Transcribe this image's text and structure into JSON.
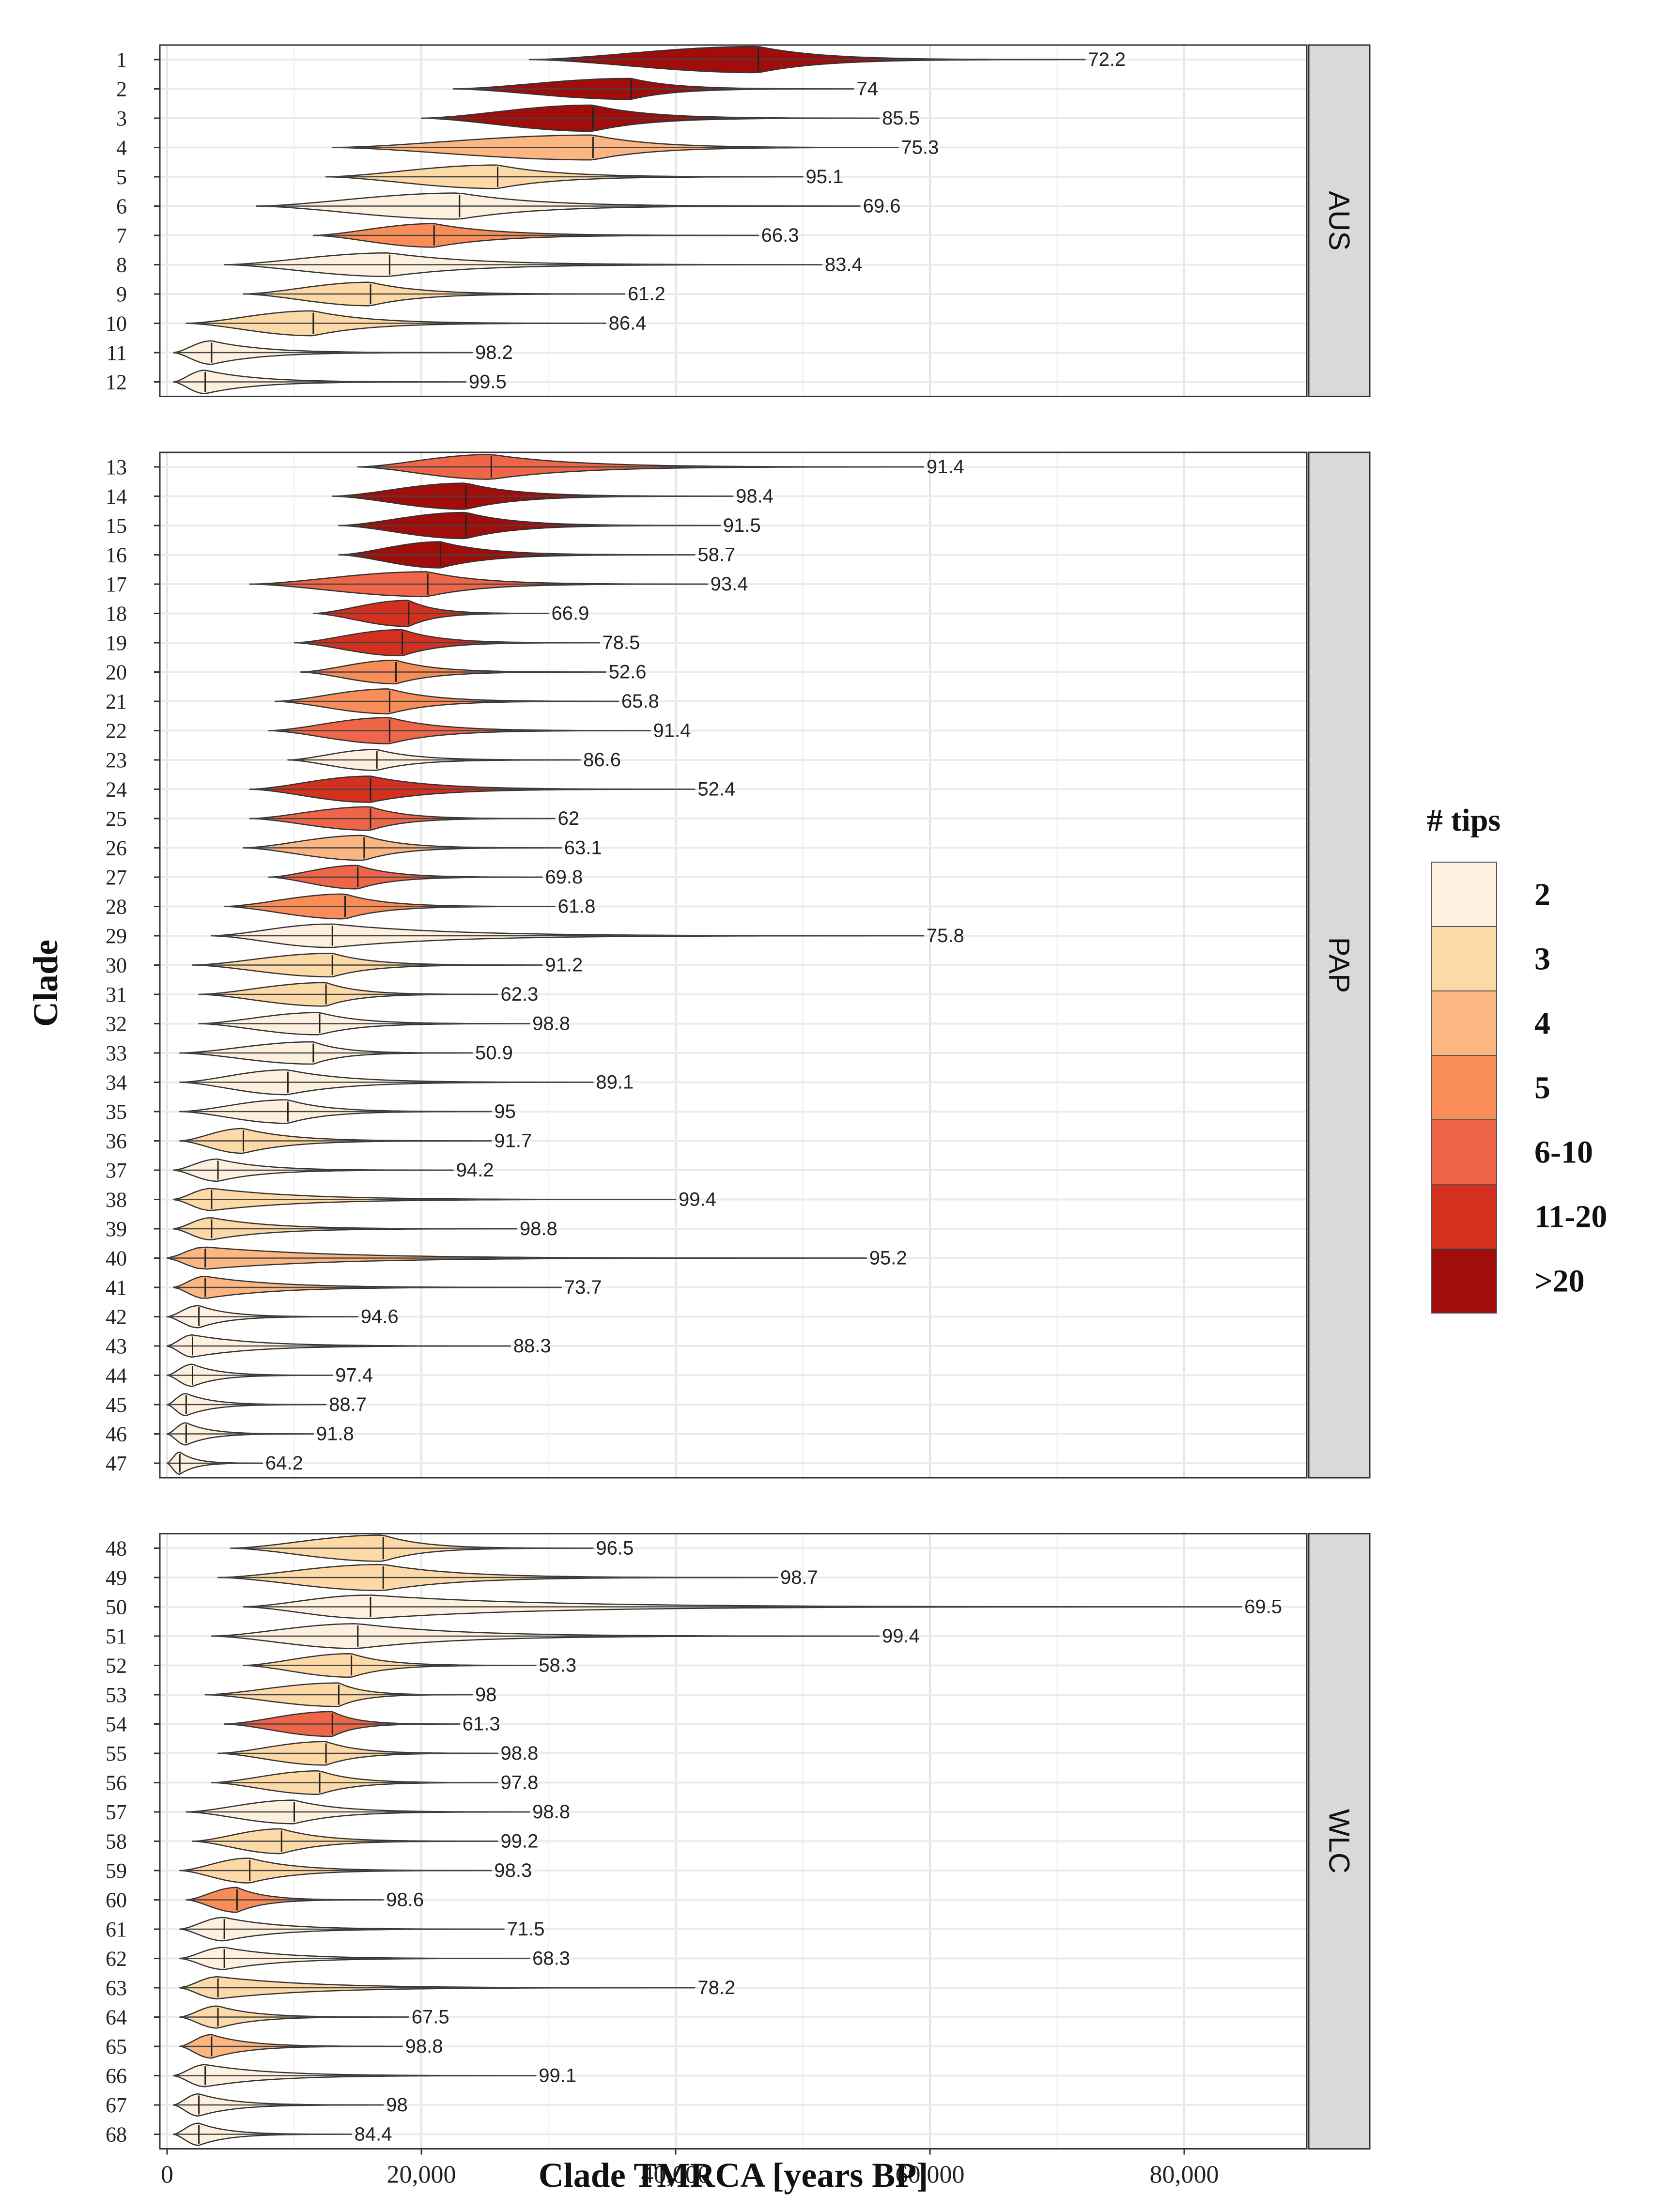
{
  "chart_data": {
    "type": "violin",
    "xlabel": "Clade TMRCA [years BP]",
    "ylabel": "Clade",
    "xlim": [
      0,
      88000
    ],
    "xticks": [
      0,
      20000,
      40000,
      60000,
      80000
    ],
    "xtick_labels": [
      "0",
      "20,000",
      "40,000",
      "60,000",
      "80,000"
    ],
    "legend": {
      "title": "# tips",
      "placement": "right",
      "entries": [
        {
          "label": "2",
          "color": "#FDF0DE"
        },
        {
          "label": "3",
          "color": "#FCD9A6"
        },
        {
          "label": "4",
          "color": "#FBB682"
        },
        {
          "label": "5",
          "color": "#F98D58"
        },
        {
          "label": "6-10",
          "color": "#EE6548"
        },
        {
          "label": "11-20",
          "color": "#D4301F"
        },
        {
          "label": ">20",
          "color": "#A10D0A"
        }
      ]
    },
    "facets": [
      {
        "name": "AUS",
        "clades": [
          {
            "clade": "1",
            "min": 28500,
            "max": 72200,
            "median": 46500,
            "width": 1.0,
            "tips": ">20",
            "label": "72.2"
          },
          {
            "clade": "2",
            "min": 22500,
            "max": 54000,
            "median": 36500,
            "width": 0.8,
            "tips": ">20",
            "label": "74"
          },
          {
            "clade": "3",
            "min": 20000,
            "max": 56000,
            "median": 33500,
            "width": 1.0,
            "tips": ">20",
            "label": "85.5"
          },
          {
            "clade": "4",
            "min": 13000,
            "max": 57500,
            "median": 33500,
            "width": 0.95,
            "tips": "4",
            "label": "75.3"
          },
          {
            "clade": "5",
            "min": 12500,
            "max": 50000,
            "median": 26000,
            "width": 0.9,
            "tips": "3",
            "label": "95.1"
          },
          {
            "clade": "6",
            "min": 7000,
            "max": 54500,
            "median": 23000,
            "width": 1.0,
            "tips": "2",
            "label": "69.6"
          },
          {
            "clade": "7",
            "min": 11500,
            "max": 46500,
            "median": 21000,
            "width": 0.9,
            "tips": "5",
            "label": "66.3"
          },
          {
            "clade": "8",
            "min": 4500,
            "max": 51500,
            "median": 17500,
            "width": 0.9,
            "tips": "2",
            "label": "83.4"
          },
          {
            "clade": "9",
            "min": 6000,
            "max": 36000,
            "median": 16000,
            "width": 0.9,
            "tips": "3",
            "label": "61.2"
          },
          {
            "clade": "10",
            "min": 1500,
            "max": 34500,
            "median": 11500,
            "width": 0.95,
            "tips": "3",
            "label": "86.4"
          },
          {
            "clade": "11",
            "min": 500,
            "max": 24000,
            "median": 3500,
            "width": 0.9,
            "tips": "2",
            "label": "98.2"
          },
          {
            "clade": "12",
            "min": 500,
            "max": 23500,
            "median": 3000,
            "width": 0.9,
            "tips": "2",
            "label": "99.5"
          }
        ]
      },
      {
        "name": "PAP",
        "clades": [
          {
            "clade": "13",
            "min": 15000,
            "max": 59500,
            "median": 25500,
            "width": 0.95,
            "tips": "6-10",
            "label": "91.4"
          },
          {
            "clade": "14",
            "min": 13000,
            "max": 44500,
            "median": 23500,
            "width": 1.0,
            "tips": ">20",
            "label": "98.4"
          },
          {
            "clade": "15",
            "min": 13500,
            "max": 43500,
            "median": 23500,
            "width": 1.0,
            "tips": ">20",
            "label": "91.5"
          },
          {
            "clade": "16",
            "min": 13500,
            "max": 41500,
            "median": 21500,
            "width": 1.0,
            "tips": ">20",
            "label": "58.7"
          },
          {
            "clade": "17",
            "min": 6500,
            "max": 42500,
            "median": 20500,
            "width": 0.95,
            "tips": "6-10",
            "label": "93.4"
          },
          {
            "clade": "18",
            "min": 11500,
            "max": 30000,
            "median": 19000,
            "width": 1.0,
            "tips": "11-20",
            "label": "66.9"
          },
          {
            "clade": "19",
            "min": 10000,
            "max": 34000,
            "median": 18500,
            "width": 1.0,
            "tips": "11-20",
            "label": "78.5"
          },
          {
            "clade": "20",
            "min": 10500,
            "max": 34500,
            "median": 18000,
            "width": 0.9,
            "tips": "5",
            "label": "52.6"
          },
          {
            "clade": "21",
            "min": 8500,
            "max": 35500,
            "median": 17500,
            "width": 0.95,
            "tips": "5",
            "label": "65.8"
          },
          {
            "clade": "22",
            "min": 8000,
            "max": 38000,
            "median": 17500,
            "width": 1.0,
            "tips": "6-10",
            "label": "91.4"
          },
          {
            "clade": "23",
            "min": 9500,
            "max": 32500,
            "median": 16500,
            "width": 0.8,
            "tips": "2",
            "label": "86.6"
          },
          {
            "clade": "24",
            "min": 6500,
            "max": 41500,
            "median": 16000,
            "width": 1.0,
            "tips": "11-20",
            "label": "52.4"
          },
          {
            "clade": "25",
            "min": 6500,
            "max": 30500,
            "median": 16000,
            "width": 0.9,
            "tips": "6-10",
            "label": "62"
          },
          {
            "clade": "26",
            "min": 6000,
            "max": 31000,
            "median": 15500,
            "width": 0.95,
            "tips": "4",
            "label": "63.1"
          },
          {
            "clade": "27",
            "min": 8000,
            "max": 29500,
            "median": 15000,
            "width": 0.9,
            "tips": "6-10",
            "label": "69.8"
          },
          {
            "clade": "28",
            "min": 4500,
            "max": 30500,
            "median": 14000,
            "width": 0.95,
            "tips": "5",
            "label": "61.8"
          },
          {
            "clade": "29",
            "min": 3500,
            "max": 59500,
            "median": 13000,
            "width": 0.9,
            "tips": "2",
            "label": "75.8"
          },
          {
            "clade": "30",
            "min": 2000,
            "max": 29500,
            "median": 13000,
            "width": 0.9,
            "tips": "3",
            "label": "91.2"
          },
          {
            "clade": "31",
            "min": 2500,
            "max": 26000,
            "median": 12500,
            "width": 0.9,
            "tips": "3",
            "label": "62.3"
          },
          {
            "clade": "32",
            "min": 2500,
            "max": 28500,
            "median": 12000,
            "width": 0.85,
            "tips": "2",
            "label": "98.8"
          },
          {
            "clade": "33",
            "min": 1000,
            "max": 24000,
            "median": 11500,
            "width": 0.85,
            "tips": "2",
            "label": "50.9"
          },
          {
            "clade": "34",
            "min": 1000,
            "max": 33500,
            "median": 9500,
            "width": 0.95,
            "tips": "2",
            "label": "89.1"
          },
          {
            "clade": "35",
            "min": 1000,
            "max": 25500,
            "median": 9500,
            "width": 0.9,
            "tips": "2",
            "label": "95"
          },
          {
            "clade": "36",
            "min": 1000,
            "max": 25500,
            "median": 6000,
            "width": 0.95,
            "tips": "3",
            "label": "91.7"
          },
          {
            "clade": "37",
            "min": 500,
            "max": 22500,
            "median": 4000,
            "width": 0.85,
            "tips": "2",
            "label": "94.2"
          },
          {
            "clade": "38",
            "min": 500,
            "max": 40000,
            "median": 3500,
            "width": 0.85,
            "tips": "3",
            "label": "99.4"
          },
          {
            "clade": "39",
            "min": 500,
            "max": 27500,
            "median": 3500,
            "width": 0.85,
            "tips": "3",
            "label": "98.8"
          },
          {
            "clade": "40",
            "min": 0,
            "max": 55000,
            "median": 3000,
            "width": 0.85,
            "tips": "4",
            "label": "95.2"
          },
          {
            "clade": "41",
            "min": 500,
            "max": 31000,
            "median": 3000,
            "width": 0.85,
            "tips": "4",
            "label": "73.7"
          },
          {
            "clade": "42",
            "min": 0,
            "max": 15000,
            "median": 2500,
            "width": 0.85,
            "tips": "2",
            "label": "94.6"
          },
          {
            "clade": "43",
            "min": 0,
            "max": 27000,
            "median": 2000,
            "width": 0.85,
            "tips": "2",
            "label": "88.3"
          },
          {
            "clade": "44",
            "min": 0,
            "max": 13000,
            "median": 2000,
            "width": 0.85,
            "tips": "2",
            "label": "97.4"
          },
          {
            "clade": "45",
            "min": 0,
            "max": 12500,
            "median": 1500,
            "width": 0.85,
            "tips": "2",
            "label": "88.7"
          },
          {
            "clade": "46",
            "min": 0,
            "max": 11500,
            "median": 1500,
            "width": 0.85,
            "tips": "2",
            "label": "91.8"
          },
          {
            "clade": "47",
            "min": 0,
            "max": 7500,
            "median": 1000,
            "width": 0.85,
            "tips": "2",
            "label": "64.2"
          }
        ]
      },
      {
        "name": "WLC",
        "clades": [
          {
            "clade": "48",
            "min": 5000,
            "max": 33500,
            "median": 17000,
            "width": 1.0,
            "tips": "3",
            "label": "96.5"
          },
          {
            "clade": "49",
            "min": 4000,
            "max": 48000,
            "median": 17000,
            "width": 1.0,
            "tips": "3",
            "label": "98.7"
          },
          {
            "clade": "50",
            "min": 6000,
            "max": 84500,
            "median": 16000,
            "width": 0.9,
            "tips": "2",
            "label": "69.5"
          },
          {
            "clade": "51",
            "min": 3500,
            "max": 56000,
            "median": 15000,
            "width": 0.95,
            "tips": "2",
            "label": "99.4"
          },
          {
            "clade": "52",
            "min": 6000,
            "max": 29000,
            "median": 14500,
            "width": 0.9,
            "tips": "3",
            "label": "58.3"
          },
          {
            "clade": "53",
            "min": 3000,
            "max": 24000,
            "median": 13500,
            "width": 0.9,
            "tips": "3",
            "label": "98"
          },
          {
            "clade": "54",
            "min": 4500,
            "max": 23000,
            "median": 13000,
            "width": 0.95,
            "tips": "6-10",
            "label": "61.3"
          },
          {
            "clade": "55",
            "min": 4000,
            "max": 26000,
            "median": 12500,
            "width": 0.9,
            "tips": "3",
            "label": "98.8"
          },
          {
            "clade": "56",
            "min": 3500,
            "max": 26000,
            "median": 12000,
            "width": 0.9,
            "tips": "3",
            "label": "97.8"
          },
          {
            "clade": "57",
            "min": 1500,
            "max": 28500,
            "median": 10000,
            "width": 0.9,
            "tips": "2",
            "label": "98.8"
          },
          {
            "clade": "58",
            "min": 2000,
            "max": 26000,
            "median": 9000,
            "width": 0.95,
            "tips": "3",
            "label": "99.2"
          },
          {
            "clade": "59",
            "min": 1000,
            "max": 25500,
            "median": 6500,
            "width": 0.95,
            "tips": "3",
            "label": "98.3"
          },
          {
            "clade": "60",
            "min": 1500,
            "max": 17000,
            "median": 5500,
            "width": 0.95,
            "tips": "5",
            "label": "98.6"
          },
          {
            "clade": "61",
            "min": 1000,
            "max": 26500,
            "median": 4500,
            "width": 0.9,
            "tips": "2",
            "label": "71.5"
          },
          {
            "clade": "62",
            "min": 1000,
            "max": 28500,
            "median": 4500,
            "width": 0.85,
            "tips": "2",
            "label": "68.3"
          },
          {
            "clade": "63",
            "min": 1000,
            "max": 41500,
            "median": 4000,
            "width": 0.85,
            "tips": "3",
            "label": "78.2"
          },
          {
            "clade": "64",
            "min": 1000,
            "max": 19000,
            "median": 4000,
            "width": 0.85,
            "tips": "3",
            "label": "67.5"
          },
          {
            "clade": "65",
            "min": 1000,
            "max": 18500,
            "median": 3500,
            "width": 0.9,
            "tips": "4",
            "label": "98.8"
          },
          {
            "clade": "66",
            "min": 500,
            "max": 29000,
            "median": 3000,
            "width": 0.85,
            "tips": "2",
            "label": "99.1"
          },
          {
            "clade": "67",
            "min": 500,
            "max": 17000,
            "median": 2500,
            "width": 0.85,
            "tips": "2",
            "label": "98"
          },
          {
            "clade": "68",
            "min": 500,
            "max": 14500,
            "median": 2500,
            "width": 0.85,
            "tips": "2",
            "label": "84.4"
          }
        ]
      }
    ]
  }
}
